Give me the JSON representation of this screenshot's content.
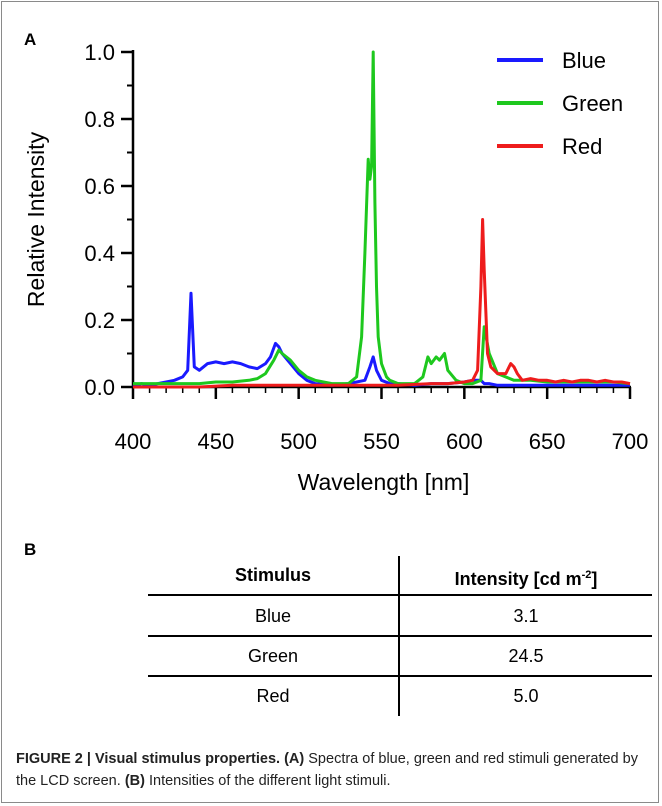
{
  "panel_a_label": "A",
  "panel_b_label": "B",
  "chart_data": {
    "type": "line",
    "xlabel": "Wavelength [nm]",
    "ylabel": "Relative Intensity",
    "xlim": [
      400,
      700
    ],
    "ylim": [
      0,
      1.0
    ],
    "x_ticks": [
      400,
      450,
      500,
      550,
      600,
      650,
      700
    ],
    "y_ticks": [
      0.0,
      0.2,
      0.4,
      0.6,
      0.8,
      1.0
    ],
    "x_tick_labels": [
      "400",
      "450",
      "500",
      "550",
      "600",
      "650",
      "700"
    ],
    "y_tick_labels": [
      "0.0",
      "0.2",
      "0.4",
      "0.6",
      "0.8",
      "1.0"
    ],
    "legend_position": "top-right",
    "series": [
      {
        "name": "Blue",
        "color": "#1a1aff",
        "x": [
          400,
          405,
          410,
          415,
          420,
          425,
          430,
          433,
          435,
          437,
          440,
          445,
          450,
          455,
          460,
          465,
          470,
          475,
          480,
          483,
          486,
          488,
          490,
          495,
          500,
          505,
          510,
          520,
          530,
          540,
          543,
          545,
          547,
          550,
          555,
          560,
          570,
          580,
          590,
          600,
          605,
          610,
          612,
          615,
          620,
          630,
          640,
          650,
          660,
          670,
          680,
          690,
          700
        ],
        "y": [
          0.0,
          0.01,
          0.005,
          0.01,
          0.015,
          0.02,
          0.03,
          0.05,
          0.28,
          0.06,
          0.05,
          0.07,
          0.075,
          0.07,
          0.075,
          0.07,
          0.06,
          0.055,
          0.07,
          0.09,
          0.13,
          0.12,
          0.1,
          0.07,
          0.04,
          0.02,
          0.01,
          0.005,
          0.01,
          0.02,
          0.06,
          0.09,
          0.05,
          0.02,
          0.01,
          0.01,
          0.005,
          0.01,
          0.01,
          0.015,
          0.02,
          0.02,
          0.01,
          0.01,
          0.005,
          0.005,
          0.005,
          0.005,
          0.005,
          0.005,
          0.005,
          0.005,
          0.005
        ]
      },
      {
        "name": "Green",
        "color": "#1ec81e",
        "x": [
          400,
          410,
          420,
          430,
          440,
          450,
          460,
          470,
          475,
          480,
          485,
          488,
          490,
          495,
          500,
          505,
          510,
          520,
          530,
          535,
          538,
          540,
          542,
          543,
          544,
          545,
          546,
          547,
          548,
          550,
          553,
          555,
          560,
          570,
          575,
          578,
          580,
          583,
          585,
          588,
          590,
          595,
          600,
          605,
          610,
          612,
          615,
          620,
          630,
          640,
          650,
          660,
          670,
          680,
          690,
          700
        ],
        "y": [
          0.01,
          0.01,
          0.01,
          0.01,
          0.01,
          0.015,
          0.015,
          0.02,
          0.025,
          0.04,
          0.08,
          0.11,
          0.1,
          0.08,
          0.05,
          0.03,
          0.02,
          0.01,
          0.01,
          0.03,
          0.15,
          0.4,
          0.68,
          0.62,
          0.66,
          1.0,
          0.55,
          0.3,
          0.15,
          0.07,
          0.03,
          0.02,
          0.01,
          0.01,
          0.03,
          0.09,
          0.07,
          0.09,
          0.08,
          0.1,
          0.05,
          0.02,
          0.01,
          0.01,
          0.02,
          0.18,
          0.1,
          0.04,
          0.02,
          0.02,
          0.015,
          0.015,
          0.015,
          0.015,
          0.015,
          0.01
        ]
      },
      {
        "name": "Red",
        "color": "#ee1c1c",
        "x": [
          400,
          420,
          440,
          460,
          480,
          500,
          520,
          540,
          560,
          580,
          590,
          600,
          605,
          608,
          610,
          611,
          612,
          614,
          616,
          618,
          620,
          625,
          628,
          630,
          632,
          635,
          640,
          645,
          650,
          655,
          660,
          665,
          670,
          675,
          680,
          685,
          690,
          695,
          700
        ],
        "y": [
          0.0,
          0.0,
          0.0,
          0.005,
          0.005,
          0.005,
          0.005,
          0.005,
          0.005,
          0.01,
          0.01,
          0.015,
          0.02,
          0.05,
          0.3,
          0.5,
          0.35,
          0.1,
          0.06,
          0.05,
          0.04,
          0.04,
          0.07,
          0.06,
          0.04,
          0.02,
          0.025,
          0.02,
          0.02,
          0.015,
          0.02,
          0.015,
          0.02,
          0.02,
          0.015,
          0.02,
          0.015,
          0.015,
          0.01
        ]
      }
    ]
  },
  "table": {
    "headers": {
      "stimulus": "Stimulus",
      "intensity": "Intensity",
      "unit_prefix": "[cd m",
      "unit_exp": "-2",
      "unit_suffix": "]"
    },
    "rows": [
      {
        "stimulus": "Blue",
        "intensity": "3.1"
      },
      {
        "stimulus": "Green",
        "intensity": "24.5"
      },
      {
        "stimulus": "Red",
        "intensity": "5.0"
      }
    ]
  },
  "caption": {
    "figure_label": "FIGURE 2 | Visual stimulus properties.",
    "a_label": "(A)",
    "a_text": " Spectra of blue, green and red stimuli generated by the LCD screen. ",
    "b_label": "(B)",
    "b_text": " Intensities of the different light stimuli."
  }
}
